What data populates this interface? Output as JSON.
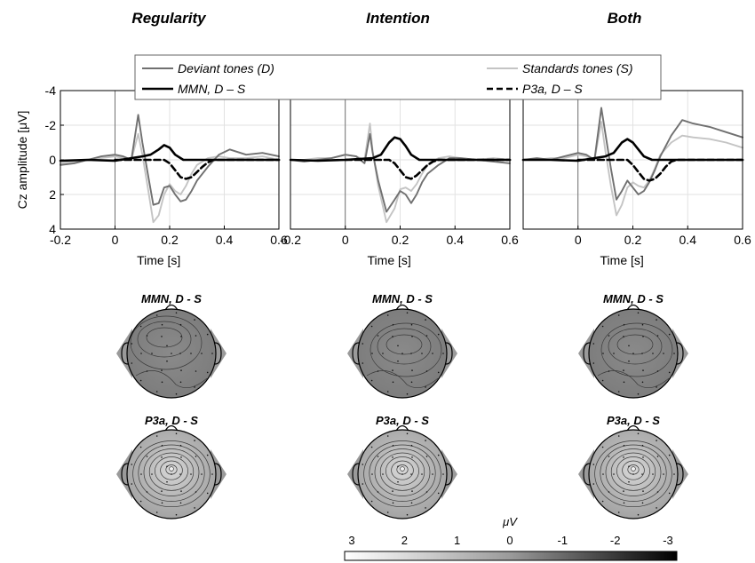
{
  "figure": {
    "column_titles": [
      "Regularity",
      "Intention",
      "Both"
    ],
    "map_titles": {
      "mmn": "MMN, D - S",
      "p3a": "P3a, D - S"
    },
    "colorbar": {
      "unit": "μV",
      "ticks": [
        "3",
        "2",
        "1",
        "0",
        "-1",
        "-2",
        "-3"
      ],
      "colormap": "white-to-black (3 to -3)"
    }
  },
  "chart_data": [
    {
      "type": "line",
      "title": "Regularity",
      "xlabel": "Time [s]",
      "ylabel": "Cz amplitude [μV]",
      "xlim": [
        -0.2,
        0.6
      ],
      "ylim": [
        4,
        -4
      ],
      "y_reversed": true,
      "xticks": [
        "-0.2",
        "0",
        "0.2",
        "0.4",
        "0.6"
      ],
      "yticks": [
        "-4",
        "-2",
        "0",
        "2",
        "4"
      ],
      "grid": true,
      "legend": [
        {
          "label": "Deviant tones (D)",
          "color": "#707070",
          "style": "solid"
        },
        {
          "label": "Standards tones (S)",
          "color": "#c4c4c4",
          "style": "solid"
        },
        {
          "label": "MMN, D – S",
          "color": "#000000",
          "style": "solid"
        },
        {
          "label": "P3a, D – S",
          "color": "#000000",
          "style": "dashed"
        }
      ],
      "legend_placement": "top",
      "series": [
        {
          "key": "deviant",
          "x": [
            -0.2,
            -0.15,
            -0.1,
            -0.05,
            0,
            0.03,
            0.06,
            0.085,
            0.1,
            0.12,
            0.14,
            0.16,
            0.18,
            0.2,
            0.22,
            0.24,
            0.26,
            0.28,
            0.3,
            0.34,
            0.38,
            0.42,
            0.48,
            0.54,
            0.6
          ],
          "y": [
            0.3,
            0.2,
            0.0,
            -0.2,
            -0.3,
            -0.2,
            0.0,
            -2.6,
            -1.0,
            0.8,
            2.6,
            2.5,
            1.6,
            1.5,
            2.0,
            2.4,
            2.3,
            1.8,
            1.2,
            0.4,
            -0.3,
            -0.6,
            -0.3,
            -0.4,
            -0.2
          ]
        },
        {
          "key": "standard",
          "x": [
            -0.2,
            -0.15,
            -0.1,
            -0.05,
            0,
            0.03,
            0.06,
            0.085,
            0.1,
            0.12,
            0.14,
            0.16,
            0.18,
            0.2,
            0.22,
            0.24,
            0.26,
            0.28,
            0.3,
            0.34,
            0.38,
            0.42,
            0.48,
            0.54,
            0.6
          ],
          "y": [
            0.2,
            0.1,
            0.0,
            -0.1,
            -0.2,
            -0.1,
            0.0,
            -1.5,
            -0.3,
            1.6,
            3.6,
            3.2,
            2.0,
            1.4,
            1.8,
            2.0,
            1.5,
            0.8,
            0.3,
            -0.1,
            -0.2,
            -0.1,
            -0.1,
            -0.2,
            0.0
          ]
        },
        {
          "key": "mmn",
          "x": [
            -0.2,
            -0.1,
            0,
            0.1,
            0.13,
            0.16,
            0.18,
            0.2,
            0.22,
            0.25,
            0.3,
            0.4,
            0.5,
            0.6
          ],
          "y": [
            0.05,
            0.0,
            0.05,
            -0.2,
            -0.3,
            -0.6,
            -0.85,
            -0.7,
            -0.3,
            0.0,
            0.0,
            0.0,
            0.0,
            0.0
          ]
        },
        {
          "key": "p3a",
          "x": [
            0.0,
            0.1,
            0.18,
            0.2,
            0.22,
            0.24,
            0.26,
            0.28,
            0.3,
            0.32,
            0.34,
            0.36,
            0.4,
            0.5,
            0.6
          ],
          "y": [
            0.0,
            0.0,
            0.0,
            0.2,
            0.6,
            1.0,
            1.1,
            1.0,
            0.7,
            0.4,
            0.15,
            0.0,
            0.0,
            0.0,
            0.0
          ]
        }
      ]
    },
    {
      "type": "line",
      "title": "Intention",
      "xlabel": "Time [s]",
      "ylabel": "",
      "xlim": [
        -0.2,
        0.6
      ],
      "ylim": [
        4,
        -4
      ],
      "y_reversed": true,
      "xticks": [
        "-0.2",
        "0",
        "0.2",
        "0.4",
        "0.6"
      ],
      "yticks": [],
      "grid": true,
      "series": [
        {
          "key": "deviant",
          "x": [
            -0.2,
            -0.15,
            -0.1,
            -0.05,
            0,
            0.04,
            0.07,
            0.09,
            0.1,
            0.12,
            0.15,
            0.18,
            0.2,
            0.22,
            0.24,
            0.26,
            0.28,
            0.3,
            0.34,
            0.38,
            0.42,
            0.48,
            0.54,
            0.6
          ],
          "y": [
            0.0,
            0.1,
            0.0,
            -0.1,
            -0.3,
            -0.2,
            0.2,
            -1.5,
            -0.4,
            1.2,
            3.0,
            2.3,
            1.8,
            2.0,
            2.5,
            2.0,
            1.3,
            0.8,
            0.3,
            -0.1,
            -0.1,
            0.0,
            0.1,
            0.2
          ]
        },
        {
          "key": "standard",
          "x": [
            -0.2,
            -0.15,
            -0.1,
            -0.05,
            0,
            0.04,
            0.07,
            0.09,
            0.1,
            0.12,
            0.15,
            0.18,
            0.2,
            0.22,
            0.24,
            0.26,
            0.28,
            0.3,
            0.34,
            0.38,
            0.42,
            0.48,
            0.54,
            0.6
          ],
          "y": [
            0.0,
            0.0,
            -0.1,
            -0.1,
            -0.3,
            -0.2,
            0.0,
            -2.1,
            -0.5,
            1.5,
            3.6,
            2.8,
            1.7,
            1.6,
            1.8,
            1.4,
            0.8,
            0.3,
            -0.1,
            -0.2,
            -0.1,
            0.0,
            -0.1,
            0.0
          ]
        },
        {
          "key": "mmn",
          "x": [
            -0.2,
            -0.1,
            0,
            0.1,
            0.13,
            0.16,
            0.18,
            0.2,
            0.22,
            0.24,
            0.27,
            0.3,
            0.4,
            0.5,
            0.6
          ],
          "y": [
            0.0,
            0.05,
            0.0,
            -0.1,
            -0.3,
            -1.0,
            -1.3,
            -1.2,
            -0.8,
            -0.3,
            0.0,
            0.0,
            0.0,
            0.0,
            0.0
          ]
        },
        {
          "key": "p3a",
          "x": [
            0.0,
            0.1,
            0.16,
            0.18,
            0.2,
            0.22,
            0.24,
            0.26,
            0.28,
            0.3,
            0.32,
            0.34,
            0.38,
            0.5,
            0.6
          ],
          "y": [
            0.0,
            0.0,
            0.0,
            0.2,
            0.6,
            1.0,
            1.1,
            0.9,
            0.6,
            0.3,
            0.1,
            0.0,
            0.0,
            0.0,
            0.0
          ]
        }
      ]
    },
    {
      "type": "line",
      "title": "Both",
      "xlabel": "Time [s]",
      "ylabel": "",
      "xlim": [
        -0.2,
        0.6
      ],
      "ylim": [
        4,
        -4
      ],
      "y_reversed": true,
      "xticks": [
        "0",
        "0.2",
        "0.4",
        "0.6"
      ],
      "yticks": [],
      "grid": true,
      "series": [
        {
          "key": "deviant",
          "x": [
            -0.2,
            -0.15,
            -0.1,
            -0.05,
            0,
            0.03,
            0.06,
            0.085,
            0.1,
            0.12,
            0.14,
            0.16,
            0.18,
            0.2,
            0.22,
            0.24,
            0.26,
            0.28,
            0.3,
            0.34,
            0.38,
            0.42,
            0.48,
            0.54,
            0.6
          ],
          "y": [
            0.0,
            -0.1,
            0.0,
            -0.2,
            -0.4,
            -0.3,
            0.0,
            -3.0,
            -1.5,
            0.5,
            2.3,
            1.8,
            1.2,
            1.6,
            2.0,
            1.8,
            1.3,
            0.6,
            -0.2,
            -1.4,
            -2.3,
            -2.1,
            -1.9,
            -1.6,
            -1.3
          ]
        },
        {
          "key": "standard",
          "x": [
            -0.2,
            -0.15,
            -0.1,
            -0.05,
            0,
            0.03,
            0.06,
            0.085,
            0.1,
            0.12,
            0.14,
            0.16,
            0.18,
            0.2,
            0.22,
            0.24,
            0.26,
            0.28,
            0.3,
            0.34,
            0.38,
            0.42,
            0.48,
            0.54,
            0.6
          ],
          "y": [
            0.0,
            0.0,
            -0.1,
            -0.1,
            -0.3,
            -0.2,
            0.0,
            -2.2,
            -0.5,
            1.5,
            3.2,
            2.6,
            1.6,
            1.3,
            1.5,
            1.6,
            1.2,
            0.5,
            -0.3,
            -1.0,
            -1.4,
            -1.3,
            -1.2,
            -1.0,
            -0.7
          ]
        },
        {
          "key": "mmn",
          "x": [
            -0.2,
            -0.1,
            0,
            0.1,
            0.13,
            0.16,
            0.18,
            0.2,
            0.22,
            0.24,
            0.27,
            0.3,
            0.4,
            0.5,
            0.6
          ],
          "y": [
            0.0,
            0.0,
            0.05,
            -0.2,
            -0.4,
            -1.0,
            -1.2,
            -1.0,
            -0.6,
            -0.2,
            0.0,
            0.0,
            0.0,
            0.0,
            0.0
          ]
        },
        {
          "key": "p3a",
          "x": [
            0.0,
            0.1,
            0.18,
            0.2,
            0.22,
            0.24,
            0.26,
            0.28,
            0.3,
            0.32,
            0.34,
            0.36,
            0.4,
            0.5,
            0.6
          ],
          "y": [
            0.0,
            0.0,
            0.0,
            0.3,
            0.7,
            1.1,
            1.2,
            1.1,
            0.8,
            0.4,
            0.1,
            0.0,
            0.0,
            0.0,
            0.0
          ]
        }
      ]
    }
  ]
}
